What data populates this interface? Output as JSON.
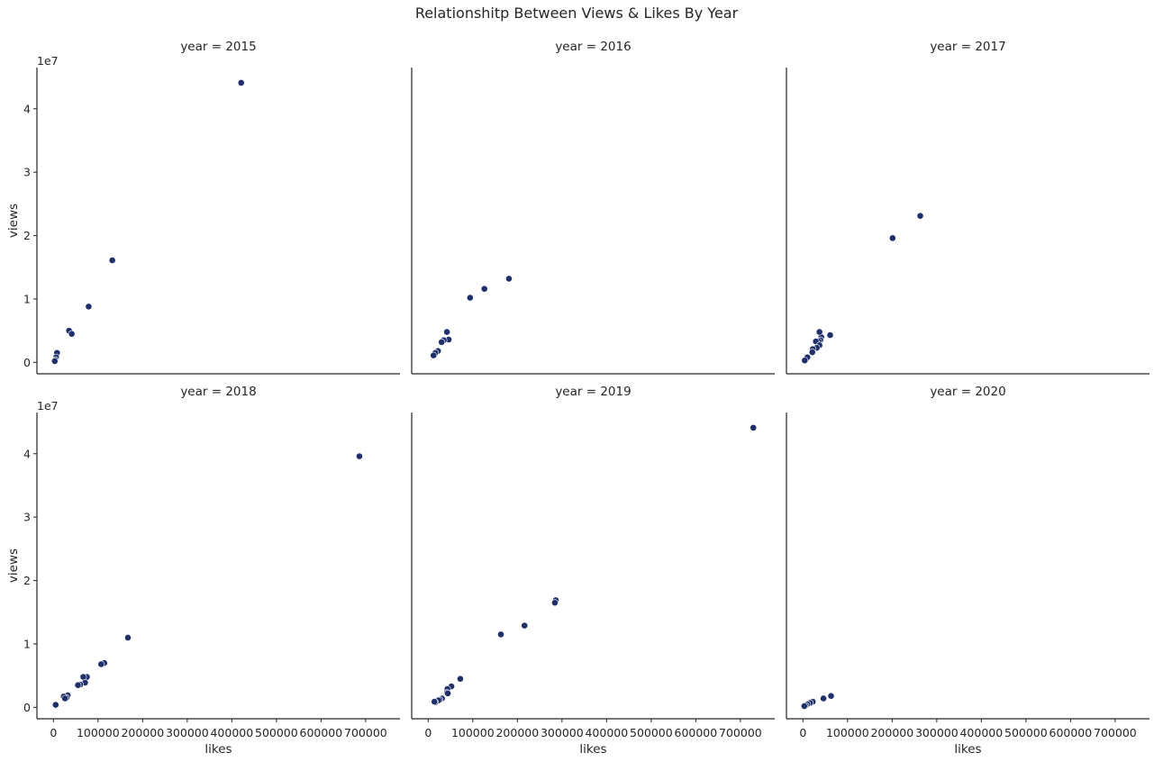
{
  "chart_data": {
    "type": "scatter",
    "title": "Relationshitp Between Views & Likes By Year",
    "xlabel": "likes",
    "ylabel": "views",
    "y_offset_label": "1e7",
    "xlim": [
      -37000,
      777000
    ],
    "ylim": [
      -1800000,
      46500000
    ],
    "xticks": [
      0,
      100000,
      200000,
      300000,
      400000,
      500000,
      600000,
      700000
    ],
    "xtick_labels": [
      "0",
      "100000",
      "200000",
      "300000",
      "400000",
      "500000",
      "600000",
      "700000"
    ],
    "yticks": [
      0,
      10000000,
      20000000,
      30000000,
      40000000
    ],
    "ytick_labels": [
      "0",
      "1",
      "2",
      "3",
      "4"
    ],
    "grid": false,
    "marker_color": "#1f2f6b",
    "marker_edge_color": "#ffffff",
    "panels": [
      {
        "title": "year = 2015",
        "points": [
          [
            421000,
            44100000
          ],
          [
            132000,
            16100000
          ],
          [
            79000,
            8800000
          ],
          [
            35000,
            5000000
          ],
          [
            41000,
            4500000
          ],
          [
            8000,
            1500000
          ],
          [
            6000,
            800000
          ],
          [
            4000,
            400000
          ],
          [
            3000,
            200000
          ]
        ]
      },
      {
        "title": "year = 2016",
        "points": [
          [
            181000,
            13200000
          ],
          [
            126000,
            11600000
          ],
          [
            94000,
            10200000
          ],
          [
            42000,
            4800000
          ],
          [
            46000,
            3600000
          ],
          [
            35000,
            3500000
          ],
          [
            30000,
            3200000
          ],
          [
            22000,
            1800000
          ],
          [
            16000,
            1500000
          ],
          [
            12000,
            1100000
          ]
        ]
      },
      {
        "title": "year = 2017",
        "points": [
          [
            263000,
            23100000
          ],
          [
            201000,
            19600000
          ],
          [
            61000,
            4300000
          ],
          [
            41000,
            4000000
          ],
          [
            37000,
            4800000
          ],
          [
            39000,
            3500000
          ],
          [
            35000,
            3300000
          ],
          [
            29000,
            3300000
          ],
          [
            37000,
            2700000
          ],
          [
            31000,
            2300000
          ],
          [
            22000,
            2100000
          ],
          [
            21000,
            1600000
          ],
          [
            10000,
            800000
          ],
          [
            4000,
            300000
          ]
        ]
      },
      {
        "title": "year = 2018",
        "points": [
          [
            686000,
            39600000
          ],
          [
            167000,
            11000000
          ],
          [
            114000,
            7000000
          ],
          [
            107000,
            6800000
          ],
          [
            75000,
            4800000
          ],
          [
            67000,
            4800000
          ],
          [
            71000,
            3900000
          ],
          [
            60000,
            3600000
          ],
          [
            55000,
            3500000
          ],
          [
            32000,
            1900000
          ],
          [
            29000,
            1500000
          ],
          [
            23000,
            1700000
          ],
          [
            26000,
            1400000
          ],
          [
            5000,
            400000
          ]
        ]
      },
      {
        "title": "year = 2019",
        "points": [
          [
            729000,
            44100000
          ],
          [
            286000,
            16900000
          ],
          [
            284000,
            16500000
          ],
          [
            216000,
            12900000
          ],
          [
            163000,
            11500000
          ],
          [
            72000,
            4500000
          ],
          [
            52000,
            3300000
          ],
          [
            43000,
            2900000
          ],
          [
            42000,
            2300000
          ],
          [
            44000,
            2200000
          ],
          [
            31000,
            1400000
          ],
          [
            26000,
            1200000
          ],
          [
            23000,
            1100000
          ],
          [
            16000,
            800000
          ],
          [
            14000,
            900000
          ]
        ]
      },
      {
        "title": "year = 2020",
        "points": [
          [
            63000,
            1800000
          ],
          [
            46000,
            1400000
          ],
          [
            22000,
            900000
          ],
          [
            16000,
            700000
          ],
          [
            10000,
            500000
          ],
          [
            6000,
            300000
          ],
          [
            3000,
            200000
          ]
        ]
      }
    ]
  }
}
